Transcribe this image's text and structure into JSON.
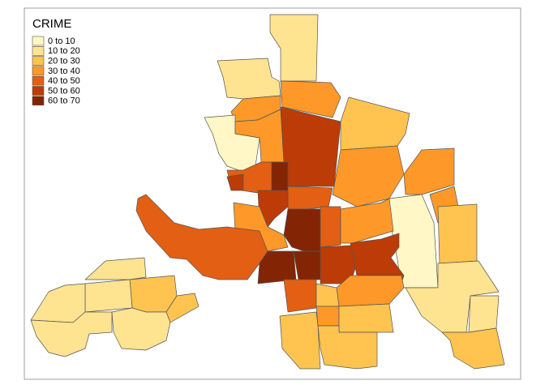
{
  "legend": {
    "title": "CRIME",
    "items": [
      {
        "label": "0 to 10",
        "color": "#fff7c5"
      },
      {
        "label": "10 to 20",
        "color": "#fee391"
      },
      {
        "label": "20 to 30",
        "color": "#fec44f"
      },
      {
        "label": "30 to 40",
        "color": "#fe9929"
      },
      {
        "label": "40 to 50",
        "color": "#e35f14"
      },
      {
        "label": "50 to 60",
        "color": "#bd3b06"
      },
      {
        "label": "60 to 70",
        "color": "#832404"
      }
    ]
  }
}
